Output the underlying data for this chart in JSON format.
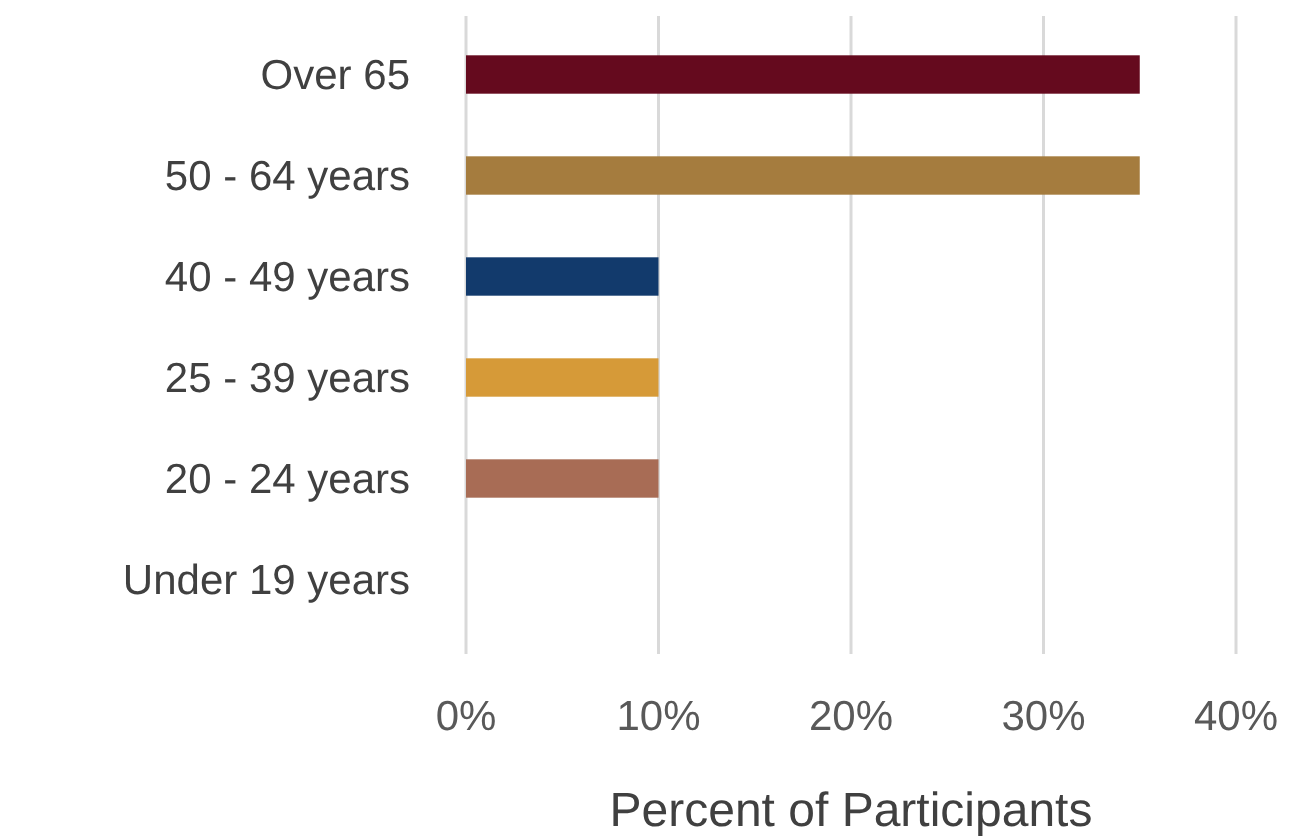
{
  "chart_data": {
    "type": "bar",
    "orientation": "horizontal",
    "xlabel": "Percent of Participants",
    "categories": [
      "Over 65",
      "50 - 64 years",
      "40 - 49 years",
      "25 - 39 years",
      "20 - 24 years",
      "Under 19 years"
    ],
    "values": [
      35,
      35,
      10,
      10,
      10,
      0
    ],
    "colors": [
      "#650a1e",
      "#a57c3e",
      "#123a6c",
      "#d69a38",
      "#a86c55",
      "#888888"
    ],
    "xlim": [
      0,
      40
    ],
    "xticks": [
      {
        "value": 0,
        "label": "0%"
      },
      {
        "value": 10,
        "label": "10%"
      },
      {
        "value": 20,
        "label": "20%"
      },
      {
        "value": 30,
        "label": "30%"
      },
      {
        "value": 40,
        "label": "40%"
      }
    ],
    "grid": "x"
  }
}
